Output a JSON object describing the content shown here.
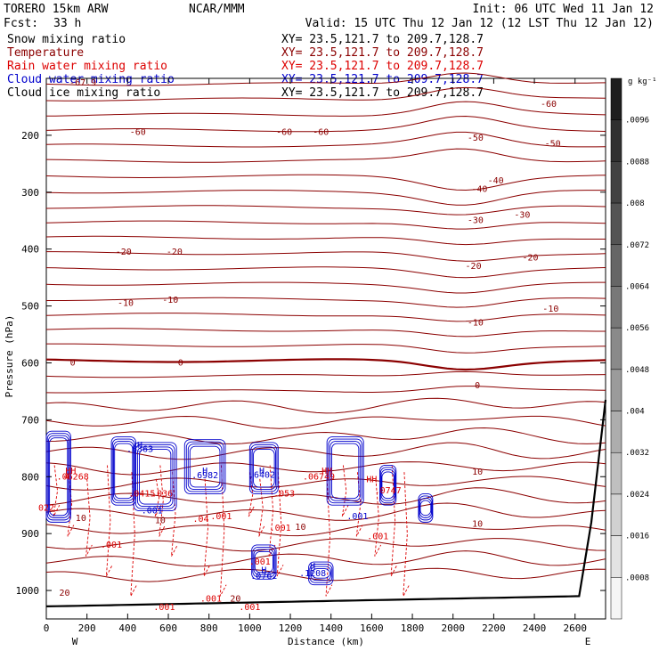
{
  "header": {
    "title": "TORERO  15km ARW",
    "org": "NCAR/MMM",
    "init": "Init: 06 UTC Wed 11 Jan 12",
    "fcst_label": "Fcst:",
    "fcst_value": "33 h",
    "valid": "Valid: 15 UTC Thu 12 Jan 12 (12 LST Thu 12 Jan 12)"
  },
  "legend": [
    {
      "name": "Snow mixing ratio",
      "xy": "XY=  23.5,121.7 to 209.7,128.7",
      "color": "#000000"
    },
    {
      "name": "Temperature",
      "xy": "XY=  23.5,121.7 to 209.7,128.7",
      "color": "#8b0000"
    },
    {
      "name": "Rain water mixing ratio",
      "xy": "XY=  23.5,121.7 to 209.7,128.7",
      "color": "#dd0000"
    },
    {
      "name": "Cloud water mixing ratio",
      "xy": "XY=  23.5,121.7 to 209.7,128.7",
      "color": "#0000cc"
    },
    {
      "name": "Cloud ice mixing ratio",
      "xy": "XY=  23.5,121.7 to 209.7,128.7",
      "color": "#000000"
    }
  ],
  "chart_data": {
    "type": "contour cross-section",
    "xlabel": "Distance (km)",
    "ylabel": "Pressure (hPa)",
    "xlim": [
      0,
      2750
    ],
    "ylim": [
      1050,
      100
    ],
    "x_ticks": [
      "0",
      "200",
      "400",
      "600",
      "800",
      "1000",
      "1200",
      "1400",
      "1600",
      "1800",
      "2000",
      "2200",
      "2400",
      "2600"
    ],
    "y_ticks": [
      "200",
      "300",
      "400",
      "500",
      "600",
      "700",
      "800",
      "900",
      "1000"
    ],
    "x_end_labels": {
      "left": "W",
      "right": "E"
    },
    "colorbar": {
      "unit": "g kg⁻¹",
      "labels": [
        ".0096",
        ".0088",
        ".008",
        ".0072",
        ".0064",
        ".0056",
        ".0048",
        ".004",
        ".0032",
        ".0024",
        ".0016",
        ".0008"
      ]
    },
    "temperature_labels": [
      {
        "x": 180,
        "p": 108,
        "text": "-67.9"
      },
      {
        "x": 2470,
        "p": 145,
        "text": "-60"
      },
      {
        "x": 450,
        "p": 195,
        "text": "-60"
      },
      {
        "x": 1170,
        "p": 195,
        "text": "-60"
      },
      {
        "x": 1350,
        "p": 195,
        "text": "-60"
      },
      {
        "x": 2110,
        "p": 205,
        "text": "-50"
      },
      {
        "x": 2490,
        "p": 215,
        "text": "-50"
      },
      {
        "x": 2130,
        "p": 295,
        "text": "-40"
      },
      {
        "x": 2210,
        "p": 280,
        "text": "-40"
      },
      {
        "x": 2110,
        "p": 350,
        "text": "-30"
      },
      {
        "x": 2340,
        "p": 340,
        "text": "-30"
      },
      {
        "x": 380,
        "p": 405,
        "text": "-20"
      },
      {
        "x": 630,
        "p": 405,
        "text": "-20"
      },
      {
        "x": 2100,
        "p": 430,
        "text": "-20"
      },
      {
        "x": 2380,
        "p": 415,
        "text": "-20"
      },
      {
        "x": 390,
        "p": 495,
        "text": "-10"
      },
      {
        "x": 610,
        "p": 490,
        "text": "-10"
      },
      {
        "x": 2110,
        "p": 530,
        "text": "-10"
      },
      {
        "x": 2480,
        "p": 505,
        "text": "-10"
      },
      {
        "x": 130,
        "p": 600,
        "text": "0"
      },
      {
        "x": 660,
        "p": 600,
        "text": "0"
      },
      {
        "x": 2120,
        "p": 640,
        "text": "0"
      },
      {
        "x": 2120,
        "p": 792,
        "text": "10"
      },
      {
        "x": 170,
        "p": 873,
        "text": "10"
      },
      {
        "x": 560,
        "p": 877,
        "text": "10"
      },
      {
        "x": 1250,
        "p": 889,
        "text": "10"
      },
      {
        "x": 2120,
        "p": 883,
        "text": "10"
      },
      {
        "x": 90,
        "p": 1005,
        "text": "20"
      },
      {
        "x": 930,
        "p": 1015,
        "text": "20"
      }
    ],
    "cloud_water_labels": [
      {
        "x": 460,
        "p": 745,
        "text": "H"
      },
      {
        "x": 460,
        "p": 752,
        "text": ".6363"
      },
      {
        "x": 780,
        "p": 790,
        "text": "H"
      },
      {
        "x": 780,
        "p": 798,
        "text": ".6982"
      },
      {
        "x": 1060,
        "p": 790,
        "text": "H"
      },
      {
        "x": 1060,
        "p": 797,
        "text": ".6402"
      },
      {
        "x": 520,
        "p": 860,
        "text": ".001"
      },
      {
        "x": 1530,
        "p": 870,
        "text": ".001"
      },
      {
        "x": 1070,
        "p": 965,
        "text": "H"
      },
      {
        "x": 1070,
        "p": 975,
        "text": ".0762"
      },
      {
        "x": 1310,
        "p": 958,
        "text": "H"
      },
      {
        "x": 1310,
        "p": 970,
        "text": ".1208"
      }
    ],
    "rain_water_labels": [
      {
        "x": 120,
        "p": 790,
        "text": "HH"
      },
      {
        "x": 130,
        "p": 800,
        "text": ".06268"
      },
      {
        "x": 100,
        "p": 800,
        "text": "4"
      },
      {
        "x": 470,
        "p": 830,
        "text": ".0415"
      },
      {
        "x": 570,
        "p": 830,
        "text": ".036"
      },
      {
        "x": 1170,
        "p": 830,
        "text": ".053"
      },
      {
        "x": 1380,
        "p": 790,
        "text": "HH"
      },
      {
        "x": 1340,
        "p": 800,
        "text": ".06749"
      },
      {
        "x": 1600,
        "p": 805,
        "text": "HH"
      },
      {
        "x": 1680,
        "p": 825,
        "text": ".0747"
      },
      {
        "x": 0,
        "p": 855,
        "text": "022"
      },
      {
        "x": 760,
        "p": 875,
        "text": ".04"
      },
      {
        "x": 860,
        "p": 870,
        "text": ".001"
      },
      {
        "x": 1150,
        "p": 890,
        "text": ".001"
      },
      {
        "x": 320,
        "p": 920,
        "text": ".001"
      },
      {
        "x": 1050,
        "p": 950,
        "text": ".001"
      },
      {
        "x": 1630,
        "p": 905,
        "text": ".001"
      },
      {
        "x": 810,
        "p": 1015,
        "text": ".001"
      },
      {
        "x": 580,
        "p": 1030,
        "text": ".001"
      },
      {
        "x": 1000,
        "p": 1030,
        "text": ".001"
      }
    ]
  }
}
